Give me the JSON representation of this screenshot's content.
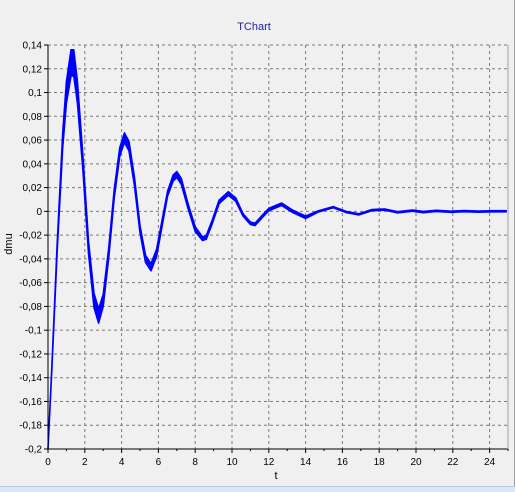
{
  "chart_data": {
    "type": "line",
    "title": "TChart",
    "xlabel": "t",
    "ylabel": "dmu",
    "xlim": [
      0,
      25
    ],
    "ylim": [
      -0.2,
      0.14
    ],
    "grid": true,
    "x_ticks": [
      0,
      2,
      4,
      6,
      8,
      10,
      12,
      14,
      16,
      18,
      20,
      22,
      24
    ],
    "x_tick_labels": [
      "0",
      "2",
      "4",
      "6",
      "8",
      "10",
      "12",
      "14",
      "16",
      "18",
      "20",
      "22",
      "24"
    ],
    "y_ticks": [
      0.14,
      0.12,
      0.1,
      0.08,
      0.06,
      0.04,
      0.02,
      0,
      -0.02,
      -0.04,
      -0.06,
      -0.08,
      -0.1,
      -0.12,
      -0.14,
      -0.16,
      -0.18,
      -0.2
    ],
    "y_tick_labels": [
      "0,14",
      "0,12",
      "0,1",
      "0,08",
      "0,06",
      "0,04",
      "0,02",
      "0",
      "-0,02",
      "-0,04",
      "-0,06",
      "-0,08",
      "-0,1",
      "-0,12",
      "-0,14",
      "-0,16",
      "-0,18",
      "-0,2"
    ],
    "series": [
      {
        "color": "#0000ff",
        "x": [
          0,
          0.2,
          0.5,
          0.8,
          1.0,
          1.25,
          1.4,
          1.6,
          1.9,
          2.2,
          2.5,
          2.75,
          3.0,
          3.3,
          3.6,
          3.9,
          4.15,
          4.4,
          4.7,
          5.0,
          5.3,
          5.6,
          5.9,
          6.2,
          6.5,
          6.8,
          7.0,
          7.25,
          7.6,
          8.0,
          8.4,
          8.6,
          8.9,
          9.3,
          9.8,
          10.2,
          10.6,
          11.0,
          11.25,
          11.6,
          12.0,
          12.7,
          13.3,
          14.0,
          14.7,
          15.5,
          16.2,
          16.9,
          17.6,
          18.3,
          19.0,
          19.8,
          20.4,
          21.1,
          21.9,
          22.6,
          23.4,
          24.2,
          24.9
        ],
        "y": [
          -0.2,
          -0.135,
          -0.03,
          0.06,
          0.1,
          0.125,
          0.125,
          0.1,
          0.04,
          -0.03,
          -0.075,
          -0.088,
          -0.075,
          -0.035,
          0.015,
          0.05,
          0.062,
          0.055,
          0.025,
          -0.015,
          -0.04,
          -0.047,
          -0.035,
          -0.01,
          0.015,
          0.028,
          0.031,
          0.025,
          0.005,
          -0.015,
          -0.023,
          -0.022,
          -0.01,
          0.008,
          0.015,
          0.01,
          -0.003,
          -0.01,
          -0.011,
          -0.005,
          0.0015,
          0.006,
          0.0,
          -0.005,
          0.0,
          0.0035,
          -0.0005,
          -0.0025,
          0.001,
          0.0015,
          -0.0008,
          0.0006,
          -0.0006,
          0.0004,
          -0.0003,
          0.0002,
          -0.0002,
          0.0001,
          0.0001
        ],
        "band_width": [
          0.0,
          0.002,
          0.006,
          0.012,
          0.018,
          0.022,
          0.022,
          0.018,
          0.012,
          0.01,
          0.012,
          0.012,
          0.01,
          0.008,
          0.007,
          0.007,
          0.008,
          0.008,
          0.007,
          0.006,
          0.006,
          0.006,
          0.006,
          0.005,
          0.004,
          0.005,
          0.005,
          0.005,
          0.004,
          0.004,
          0.003,
          0.003,
          0.003,
          0.003,
          0.003,
          0.003,
          0.002,
          0.002,
          0.002,
          0.002,
          0.002,
          0.002,
          0.002,
          0.002,
          0.001,
          0.001,
          0.001,
          0.001,
          0.001,
          0.001,
          0.001,
          0.001,
          0.001,
          0.001,
          0.001,
          0.001,
          0.001,
          0.001,
          0.001
        ]
      }
    ]
  }
}
